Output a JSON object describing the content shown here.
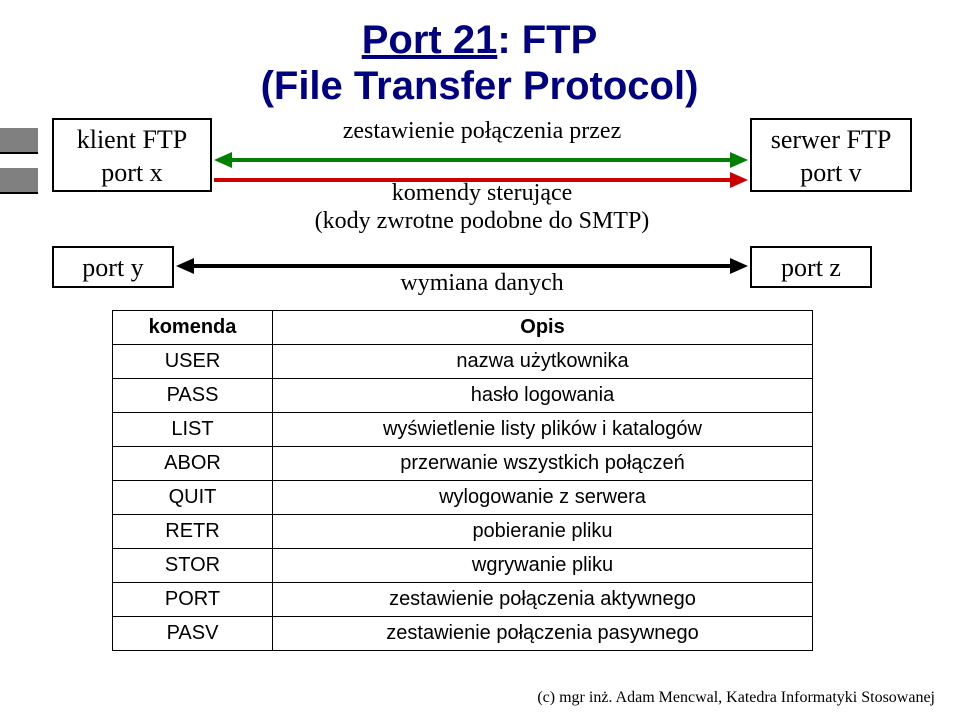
{
  "title_part_underline": "Port 21",
  "title_part_rest": ": FTP",
  "subtitle": "(File Transfer Protocol)",
  "client_box": {
    "line1": "klient FTP",
    "line2": "port x"
  },
  "server_box": {
    "line1": "serwer FTP",
    "line2": "port v"
  },
  "porty_box": "port y",
  "portz_box": "port z",
  "labels": {
    "conn_set": "zestawienie połączenia przez",
    "cmds": "komendy sterujące",
    "codes": "(kody zwrotne podobne do SMTP)",
    "data": "wymiana danych"
  },
  "arrow_colors": {
    "green": "#008000",
    "red": "#cc0000",
    "black": "#000000"
  },
  "table": {
    "header_cmd": "komenda",
    "header_desc": "Opis",
    "rows": [
      {
        "cmd": "USER",
        "desc": "nazwa użytkownika"
      },
      {
        "cmd": "PASS",
        "desc": "hasło logowania"
      },
      {
        "cmd": "LIST",
        "desc": "wyświetlenie listy plików i katalogów"
      },
      {
        "cmd": "ABOR",
        "desc": "przerwanie wszystkich połączeń"
      },
      {
        "cmd": "QUIT",
        "desc": "wylogowanie z serwera"
      },
      {
        "cmd": "RETR",
        "desc": "pobieranie pliku"
      },
      {
        "cmd": "STOR",
        "desc": "wgrywanie pliku"
      },
      {
        "cmd": "PORT",
        "desc": "zestawienie połączenia aktywnego"
      },
      {
        "cmd": "PASV",
        "desc": "zestawienie połączenia pasywnego"
      }
    ]
  },
  "footer": "(c) mgr inż. Adam Mencwal, Katedra Informatyki Stosowanej",
  "style": {
    "title_color": "#000080",
    "bg": "#ffffff",
    "bullet_fill": "#808080",
    "table_border": "#000000"
  }
}
